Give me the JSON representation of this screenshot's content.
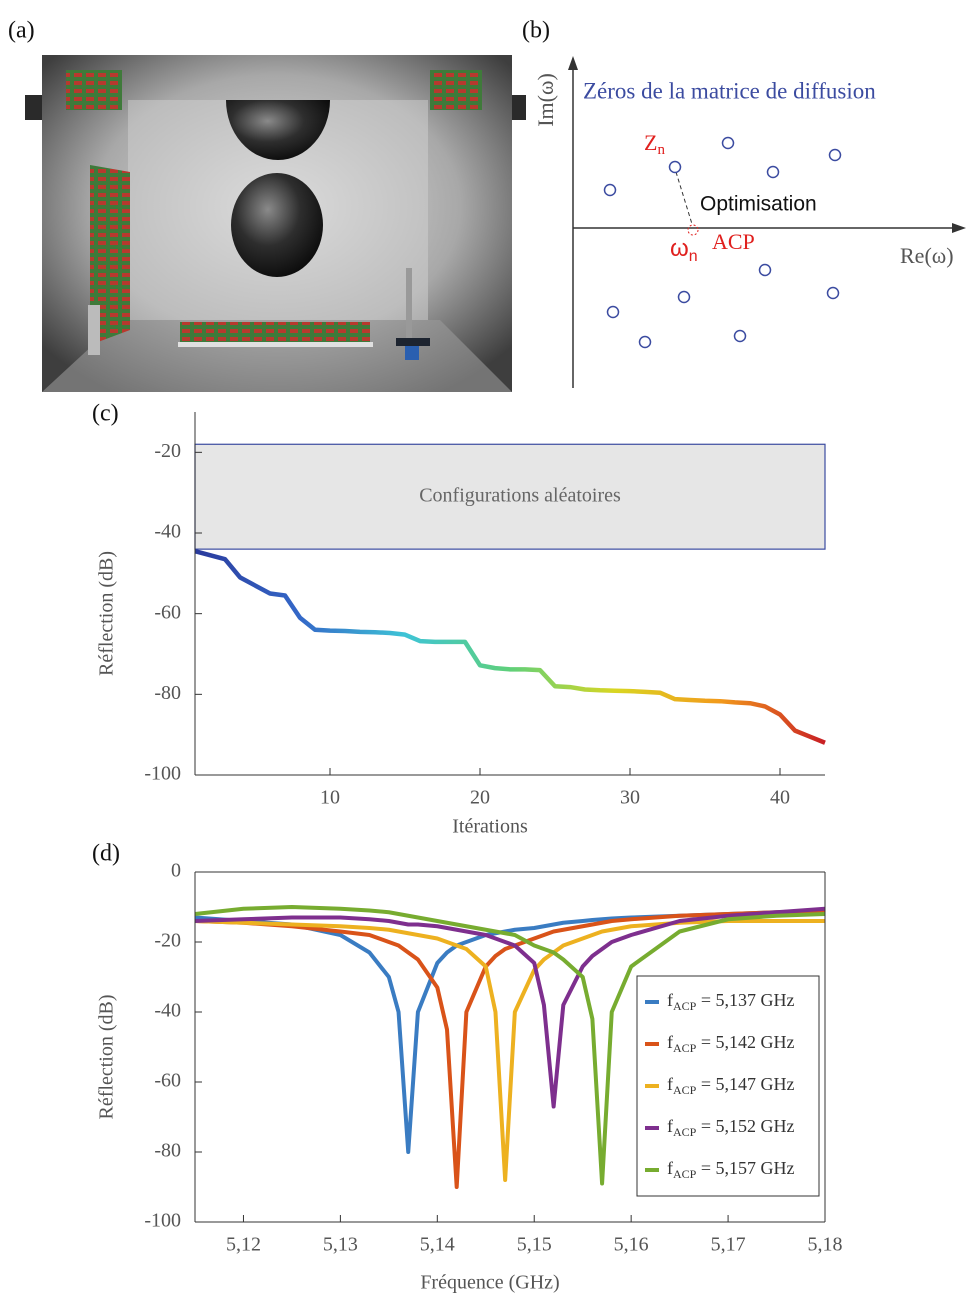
{
  "panel_labels": [
    "(a)",
    "(b)",
    "(c)",
    "(d)"
  ],
  "diagram": {
    "title": "Zéros de la matrice de diffusion",
    "y_axis": "Im(ω)",
    "x_axis": "Re(ω)",
    "zero_label": {
      "main": "Z",
      "sub": "n"
    },
    "arrow_label": "Optimisation",
    "acp_label": {
      "main": "ω",
      "sub": "n"
    },
    "acp_text": "ACP"
  },
  "chart_data": [
    {
      "type": "line",
      "xlabel": "Itérations",
      "ylabel": "Réflection (dB)",
      "x": [
        1,
        2,
        3,
        4,
        5,
        6,
        7,
        8,
        9,
        10,
        11,
        12,
        13,
        14,
        15,
        16,
        17,
        18,
        19,
        20,
        21,
        22,
        23,
        24,
        25,
        26,
        27,
        28,
        29,
        30,
        31,
        32,
        33,
        34,
        35,
        36,
        37,
        38,
        39,
        40,
        41,
        42,
        43
      ],
      "values": [
        -44.5,
        -45.5,
        -46.5,
        -51,
        -53,
        -55,
        -55.5,
        -61,
        -64,
        -64.2,
        -64.3,
        -64.5,
        -64.6,
        -64.8,
        -65.2,
        -66.8,
        -67,
        -67,
        -67,
        -72.8,
        -73.5,
        -73.8,
        -73.8,
        -74,
        -78,
        -78.2,
        -78.8,
        -79,
        -79.1,
        -79.2,
        -79.4,
        -79.6,
        -81.2,
        -81.4,
        -81.6,
        -81.7,
        -82,
        -82.2,
        -83,
        -85,
        -89,
        -90.5,
        -92
      ],
      "colormap": [
        "#2a3a9c",
        "#3468c8",
        "#3ec4d6",
        "#5fd07a",
        "#d9d622",
        "#f29a1c",
        "#c81e24"
      ],
      "band": {
        "label": "Configurations aléatoires",
        "range": [
          -44,
          -18
        ],
        "color": "#3b4ba0",
        "fill": "#e6e6e6"
      },
      "xlim": [
        1,
        43
      ],
      "ylim": [
        -100,
        -10
      ],
      "xticks": [
        10,
        20,
        30,
        40
      ],
      "yticks": [
        -20,
        -40,
        -60,
        -80,
        -100
      ],
      "grid": false
    },
    {
      "type": "line",
      "xlabel": "Fréquence (GHz)",
      "ylabel": "Réflection (dB)",
      "legend": "lower right",
      "grid": false,
      "x": [
        5.115,
        5.12,
        5.125,
        5.13,
        5.133,
        5.135,
        5.136,
        5.137,
        5.138,
        5.14,
        5.141,
        5.142,
        5.143,
        5.145,
        5.146,
        5.147,
        5.148,
        5.15,
        5.151,
        5.152,
        5.153,
        5.155,
        5.156,
        5.157,
        5.158,
        5.16,
        5.165,
        5.17,
        5.175,
        5.18
      ],
      "series": [
        {
          "name": [
            "f",
            "ACP",
            " = 5,137 GHz"
          ],
          "color": "#3a7cc2",
          "values": [
            -13,
            -14,
            -15,
            -18,
            -23,
            -30,
            -40,
            -80,
            -40,
            -26,
            -23,
            -21,
            -20,
            -18,
            -17.5,
            -17,
            -16.5,
            -16,
            -15.5,
            -15,
            -14.5,
            -14,
            -13.7,
            -13.5,
            -13.3,
            -13,
            -12.5,
            -12,
            -11.5,
            -11
          ]
        },
        {
          "name": [
            "f",
            "ACP",
            " = 5,142 GHz"
          ],
          "color": "#d95319",
          "values": [
            -14,
            -14.5,
            -15.5,
            -17,
            -18,
            -20,
            -21,
            -23,
            -25,
            -33,
            -45,
            -90,
            -40,
            -27,
            -24,
            -22,
            -21,
            -19,
            -18,
            -17,
            -16.5,
            -15.5,
            -15,
            -14.5,
            -14,
            -13.5,
            -12.5,
            -12,
            -11.5,
            -11
          ]
        },
        {
          "name": [
            "f",
            "ACP",
            " = 5,147 GHz"
          ],
          "color": "#edb120",
          "values": [
            -14,
            -14.5,
            -15,
            -15.5,
            -16,
            -16.5,
            -17,
            -17.5,
            -18,
            -19,
            -20,
            -21,
            -22,
            -27,
            -40,
            -88,
            -40,
            -28,
            -25,
            -23,
            -21,
            -19,
            -18,
            -17,
            -16.5,
            -15.5,
            -14.5,
            -14,
            -14,
            -14
          ]
        },
        {
          "name": [
            "f",
            "ACP",
            " = 5,152 GHz"
          ],
          "color": "#7e2f8e",
          "values": [
            -14,
            -13.5,
            -13,
            -13,
            -13.5,
            -14,
            -14.5,
            -15,
            -15,
            -15.5,
            -16,
            -16.5,
            -17,
            -18,
            -19,
            -20,
            -21,
            -26,
            -38,
            -67,
            -38,
            -27,
            -24,
            -22,
            -20,
            -18,
            -14,
            -12.5,
            -11.5,
            -10.5
          ]
        },
        {
          "name": [
            "f",
            "ACP",
            " = 5,157 GHz"
          ],
          "color": "#77ac30",
          "values": [
            -12,
            -10.5,
            -10,
            -10.5,
            -11,
            -11.5,
            -12,
            -12.5,
            -13,
            -14,
            -14.5,
            -15,
            -15.5,
            -16.5,
            -17,
            -17.5,
            -18,
            -21,
            -22,
            -23,
            -25,
            -30,
            -42,
            -89,
            -40,
            -27,
            -17,
            -13.5,
            -12.5,
            -12
          ]
        }
      ],
      "xlim": [
        5.115,
        5.18
      ],
      "ylim": [
        -100,
        0
      ],
      "xticks": [
        {
          "value": 5.12,
          "label": "5,12"
        },
        {
          "value": 5.13,
          "label": "5,13"
        },
        {
          "value": 5.14,
          "label": "5,14"
        },
        {
          "value": 5.15,
          "label": "5,15"
        },
        {
          "value": 5.16,
          "label": "5,16"
        },
        {
          "value": 5.17,
          "label": "5,17"
        },
        {
          "value": 5.18,
          "label": "5,18"
        }
      ],
      "yticks": [
        0,
        -20,
        -40,
        -60,
        -80,
        -100
      ]
    }
  ]
}
